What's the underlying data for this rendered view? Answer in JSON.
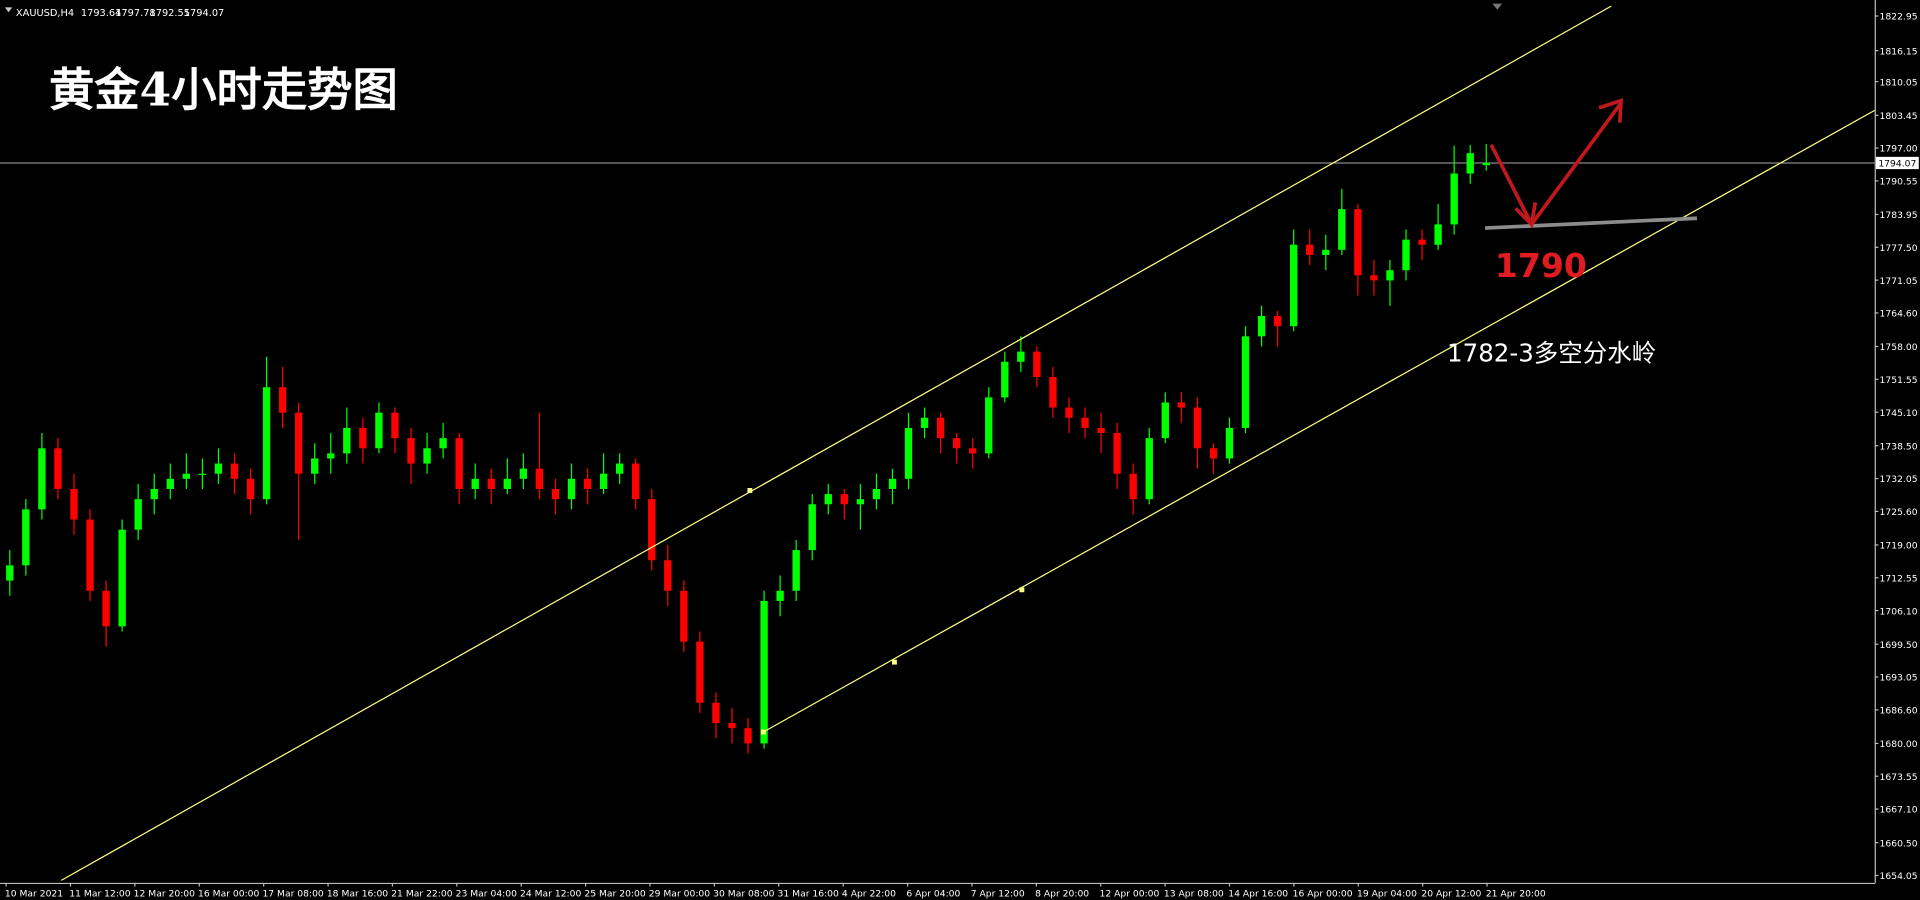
{
  "chart_data": {
    "type": "candlestick",
    "symbol": "XAUUSD,H4",
    "title": "黄金4小时走势图",
    "annotations": [
      "1790",
      "1782-3多空分水岭"
    ],
    "up_color": "#00ff00",
    "down_color": "#ff0000",
    "ylim": [
      1652.6,
      1826.1
    ],
    "yticks": [
      1822.95,
      1816.15,
      1810.05,
      1803.45,
      {
        "value": 1797,
        "label": "1797.00"
      },
      1790.55,
      1783.95,
      {
        "value": 1777.5,
        "label": "1777.50"
      },
      1771.05,
      {
        "value": 1764.6,
        "label": "1764.60"
      },
      {
        "value": 1758,
        "label": "1758.00"
      },
      1751.55,
      {
        "value": 1745.1,
        "label": "1745.10"
      },
      {
        "value": 1738.5,
        "label": "1738.50"
      },
      1732.05,
      {
        "value": 1725.6,
        "label": "1725.60"
      },
      {
        "value": 1719,
        "label": "1719.00"
      },
      1712.55,
      {
        "value": 1706.1,
        "label": "1706.10"
      },
      {
        "value": 1699.5,
        "label": "1699.50"
      },
      1693.05,
      {
        "value": 1686.6,
        "label": "1686.60"
      },
      {
        "value": 1680,
        "label": "1680.00"
      },
      1673.55,
      {
        "value": 1667.1,
        "label": "1667.10"
      },
      {
        "value": 1660.5,
        "label": "1660.50"
      },
      1654.05
    ],
    "categories": [
      "10 Mar 2021",
      "11 Mar 12:00",
      "12 Mar 20:00",
      "16 Mar 00:00",
      "17 Mar 08:00",
      "18 Mar 16:00",
      "21 Mar 22:00",
      "23 Mar 04:00",
      "24 Mar 12:00",
      "25 Mar 20:00",
      "29 Mar 00:00",
      "30 Mar 08:00",
      "31 Mar 16:00",
      "4 Apr 22:00",
      "6 Apr 04:00",
      "7 Apr 12:00",
      "8 Apr 20:00",
      "12 Apr 00:00",
      "13 Apr 08:00",
      "14 Apr 16:00",
      "16 Apr 00:00",
      "19 Apr 04:00",
      "20 Apr 12:00",
      "21 Apr 20:00"
    ],
    "ohlc": [
      [
        1712,
        1718,
        1709,
        1715
      ],
      [
        1715,
        1728,
        1713,
        1726
      ],
      [
        1726,
        1741,
        1724,
        1738
      ],
      [
        1738,
        1740,
        1728,
        1730
      ],
      [
        1730,
        1733,
        1721,
        1724
      ],
      [
        1724,
        1726,
        1708,
        1710
      ],
      [
        1710,
        1712,
        1699,
        1703
      ],
      [
        1703,
        1724,
        1702,
        1722
      ],
      [
        1722,
        1731,
        1720,
        1728
      ],
      [
        1728,
        1733,
        1725,
        1730
      ],
      [
        1730,
        1735,
        1728,
        1732
      ],
      [
        1732,
        1737,
        1730,
        1733
      ],
      [
        1733,
        1736,
        1730,
        1733
      ],
      [
        1733,
        1738,
        1731,
        1735
      ],
      [
        1735,
        1737,
        1729,
        1732
      ],
      [
        1732,
        1734,
        1725,
        1728
      ],
      [
        1728,
        1756,
        1727,
        1750
      ],
      [
        1750,
        1754,
        1742,
        1745
      ],
      [
        1745,
        1747,
        1720,
        1733
      ],
      [
        1733,
        1739,
        1731,
        1736
      ],
      [
        1736,
        1741,
        1733,
        1737
      ],
      [
        1737,
        1746,
        1735,
        1742
      ],
      [
        1742,
        1744,
        1735,
        1738
      ],
      [
        1738,
        1747,
        1737,
        1745
      ],
      [
        1745,
        1746,
        1737,
        1740
      ],
      [
        1740,
        1742,
        1731,
        1735
      ],
      [
        1735,
        1741,
        1733,
        1738
      ],
      [
        1738,
        1743,
        1736,
        1740
      ],
      [
        1740,
        1741,
        1727,
        1730
      ],
      [
        1730,
        1735,
        1728,
        1732
      ],
      [
        1732,
        1734,
        1727,
        1730
      ],
      [
        1730,
        1736,
        1729,
        1732
      ],
      [
        1732,
        1737,
        1730,
        1734
      ],
      [
        1734,
        1745,
        1728,
        1730
      ],
      [
        1730,
        1732,
        1725,
        1728
      ],
      [
        1728,
        1735,
        1726,
        1732
      ],
      [
        1732,
        1734,
        1727,
        1730
      ],
      [
        1730,
        1737,
        1729,
        1733
      ],
      [
        1733,
        1737,
        1731,
        1735
      ],
      [
        1735,
        1736,
        1726,
        1728
      ],
      [
        1728,
        1730,
        1714,
        1716
      ],
      [
        1716,
        1719,
        1707,
        1710
      ],
      [
        1710,
        1712,
        1698,
        1700
      ],
      [
        1700,
        1702,
        1686,
        1688
      ],
      [
        1688,
        1690,
        1681,
        1684
      ],
      [
        1684,
        1687,
        1680,
        1683
      ],
      [
        1683,
        1685,
        1678,
        1680
      ],
      [
        1680,
        1710,
        1679,
        1708
      ],
      [
        1708,
        1713,
        1705,
        1710
      ],
      [
        1710,
        1720,
        1708,
        1718
      ],
      [
        1718,
        1729,
        1716,
        1727
      ],
      [
        1727,
        1731,
        1725,
        1729
      ],
      [
        1729,
        1730,
        1724,
        1727
      ],
      [
        1727,
        1731,
        1722,
        1728
      ],
      [
        1728,
        1733,
        1726,
        1730
      ],
      [
        1730,
        1734,
        1727,
        1732
      ],
      [
        1732,
        1745,
        1730,
        1742
      ],
      [
        1742,
        1746,
        1740,
        1744
      ],
      [
        1744,
        1745,
        1737,
        1740
      ],
      [
        1740,
        1741,
        1735,
        1738
      ],
      [
        1738,
        1740,
        1734,
        1737
      ],
      [
        1737,
        1750,
        1736,
        1748
      ],
      [
        1748,
        1757,
        1747,
        1755
      ],
      [
        1755,
        1760,
        1753,
        1757
      ],
      [
        1757,
        1758,
        1750,
        1752
      ],
      [
        1752,
        1754,
        1744,
        1746
      ],
      [
        1746,
        1748,
        1741,
        1744
      ],
      [
        1744,
        1746,
        1740,
        1742
      ],
      [
        1742,
        1745,
        1737,
        1741
      ],
      [
        1741,
        1743,
        1730,
        1733
      ],
      [
        1733,
        1735,
        1725,
        1728
      ],
      [
        1728,
        1742,
        1727,
        1740
      ],
      [
        1740,
        1749,
        1739,
        1747
      ],
      [
        1747,
        1749,
        1743,
        1746
      ],
      [
        1746,
        1748,
        1734,
        1738
      ],
      [
        1738,
        1739,
        1733,
        1736
      ],
      [
        1736,
        1744,
        1735,
        1742
      ],
      [
        1742,
        1762,
        1741,
        1760
      ],
      [
        1760,
        1766,
        1758,
        1764
      ],
      [
        1764,
        1765,
        1758,
        1762
      ],
      [
        1762,
        1781,
        1761,
        1778
      ],
      [
        1778,
        1781,
        1774,
        1776
      ],
      [
        1776,
        1780,
        1773,
        1777
      ],
      [
        1777,
        1789,
        1776,
        1785
      ],
      [
        1785,
        1786,
        1768,
        1772
      ],
      [
        1772,
        1775,
        1768,
        1771
      ],
      [
        1771,
        1775,
        1766,
        1773
      ],
      [
        1773,
        1781,
        1771,
        1779
      ],
      [
        1779,
        1781,
        1775,
        1778
      ],
      [
        1778,
        1786,
        1777,
        1782
      ],
      [
        1782,
        1797.5,
        1780,
        1792
      ],
      [
        1792,
        1797.6,
        1790,
        1796
      ],
      [
        1793.64,
        1797.78,
        1792.55,
        1794.07
      ]
    ]
  }
}
